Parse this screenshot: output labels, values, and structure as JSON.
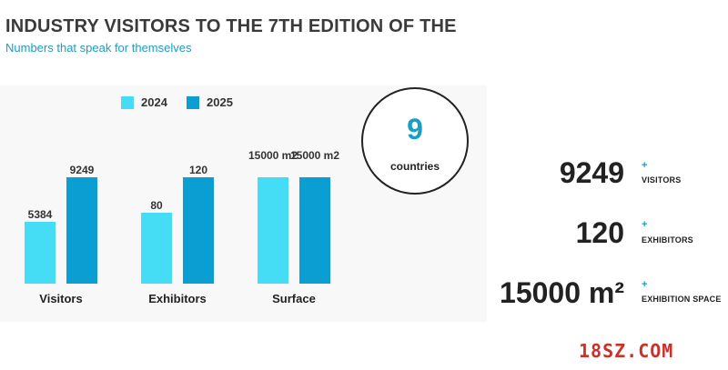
{
  "header": {
    "title": "INDUSTRY VISITORS TO THE 7TH EDITION OF THE",
    "subtitle": "Numbers that speak for themselves"
  },
  "colors": {
    "series_2024": "#45dcf5",
    "series_2025": "#0b9ed2",
    "accent": "#1a9ec6"
  },
  "chart_data": {
    "type": "bar",
    "categories": [
      "Visitors",
      "Exhibitors",
      "Surface"
    ],
    "series": [
      {
        "name": "2024",
        "labels": [
          "5384",
          "80",
          "15000 m2"
        ]
      },
      {
        "name": "2025",
        "labels": [
          "9249",
          "120",
          "15000 m2"
        ]
      }
    ]
  },
  "highlight": {
    "value": "9",
    "label": "countries"
  },
  "stats": [
    {
      "value": "9249",
      "plus": "+",
      "label": "VISITORS"
    },
    {
      "value": "120",
      "plus": "+",
      "label": "EXHIBITORS"
    },
    {
      "value": "15000 m²",
      "plus": "+",
      "label": "EXHIBITION SPACE"
    }
  ],
  "watermark": "18SZ.COM"
}
